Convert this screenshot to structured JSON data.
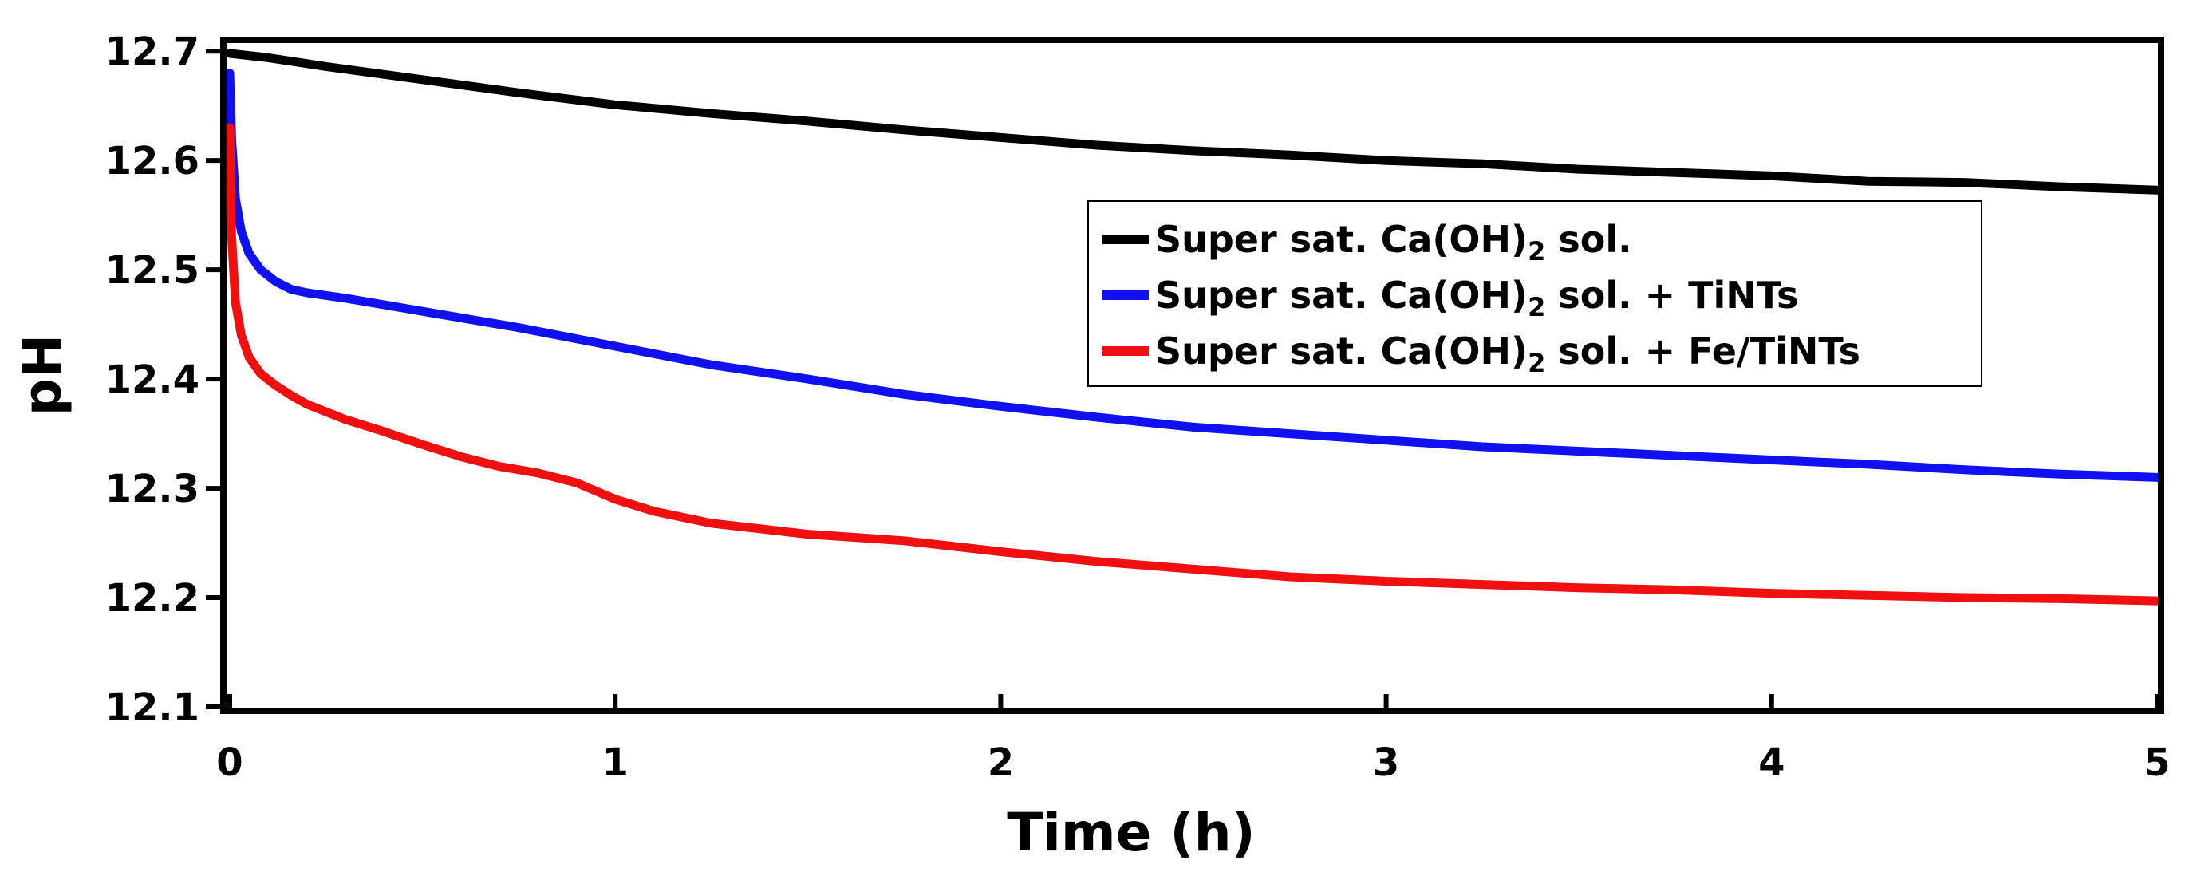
{
  "chart_data": {
    "type": "line",
    "title": "",
    "xlabel": "Time (h)",
    "ylabel": "pH",
    "xlim": [
      0,
      5
    ],
    "ylim": [
      12.1,
      12.7
    ],
    "xticks": [
      "0",
      "1",
      "2",
      "3",
      "4",
      "5"
    ],
    "yticks": [
      "12.1",
      "12.2",
      "12.3",
      "12.4",
      "12.5",
      "12.6",
      "12.7"
    ],
    "grid": false,
    "legend_position": "center-right",
    "series": [
      {
        "name": "Super sat. Ca(OH)2 sol.",
        "legend_main": "Super sat. Ca(OH)",
        "legend_sub": "2",
        "legend_tail": " sol.",
        "color": "#000000",
        "x": [
          0,
          0.1,
          0.25,
          0.5,
          0.75,
          1.0,
          1.25,
          1.5,
          1.75,
          2.0,
          2.25,
          2.5,
          2.75,
          3.0,
          3.25,
          3.5,
          3.75,
          4.0,
          4.25,
          4.5,
          4.75,
          5.0
        ],
        "y": [
          12.698,
          12.694,
          12.686,
          12.674,
          12.662,
          12.651,
          12.643,
          12.636,
          12.628,
          12.621,
          12.614,
          12.609,
          12.605,
          12.6,
          12.597,
          12.592,
          12.589,
          12.586,
          12.581,
          12.58,
          12.576,
          12.573
        ]
      },
      {
        "name": "Super sat. Ca(OH)2 sol. + TiNTs",
        "legend_main": "Super sat. Ca(OH)",
        "legend_sub": "2",
        "legend_tail": " sol. + TiNTs",
        "color": "#1010f0",
        "x": [
          0,
          0.005,
          0.015,
          0.03,
          0.05,
          0.08,
          0.12,
          0.16,
          0.2,
          0.3,
          0.5,
          0.75,
          1.0,
          1.25,
          1.5,
          1.75,
          2.0,
          2.25,
          2.5,
          2.75,
          3.0,
          3.25,
          3.5,
          3.75,
          4.0,
          4.25,
          4.5,
          4.75,
          5.0
        ],
        "y": [
          12.68,
          12.62,
          12.565,
          12.535,
          12.515,
          12.5,
          12.489,
          12.482,
          12.479,
          12.474,
          12.462,
          12.447,
          12.43,
          12.413,
          12.4,
          12.386,
          12.375,
          12.365,
          12.356,
          12.35,
          12.344,
          12.338,
          12.334,
          12.33,
          12.326,
          12.322,
          12.317,
          12.313,
          12.31
        ]
      },
      {
        "name": "Super sat. Ca(OH)2 sol. + Fe/TiNTs",
        "legend_main": "Super sat. Ca(OH)",
        "legend_sub": "2",
        "legend_tail": " sol. + Fe/TiNTs",
        "color": "#f01010",
        "x": [
          0,
          0.005,
          0.015,
          0.03,
          0.05,
          0.08,
          0.12,
          0.16,
          0.2,
          0.3,
          0.4,
          0.5,
          0.6,
          0.7,
          0.8,
          0.9,
          1.0,
          1.1,
          1.25,
          1.5,
          1.75,
          2.0,
          2.25,
          2.5,
          2.75,
          3.0,
          3.25,
          3.5,
          3.75,
          4.0,
          4.25,
          4.5,
          4.75,
          5.0
        ],
        "y": [
          12.63,
          12.53,
          12.47,
          12.44,
          12.42,
          12.405,
          12.394,
          12.385,
          12.377,
          12.363,
          12.352,
          12.34,
          12.329,
          12.32,
          12.314,
          12.305,
          12.29,
          12.279,
          12.268,
          12.258,
          12.252,
          12.242,
          12.233,
          12.226,
          12.219,
          12.215,
          12.212,
          12.209,
          12.207,
          12.204,
          12.202,
          12.2,
          12.199,
          12.197
        ]
      }
    ]
  }
}
